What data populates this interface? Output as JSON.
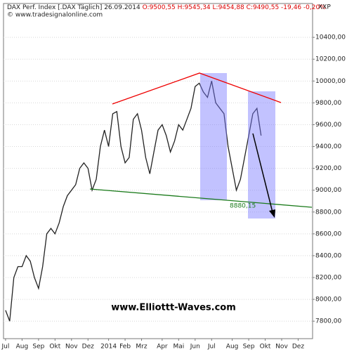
{
  "chart_data": {
    "type": "line",
    "title": "DAX Perf. Index [.DAX Täglich] 26.09.2014",
    "subtitle": "O:9500,55 H:9545,34 L:9454,88 C:9490,55 -19,46 -0,20%",
    "source": "© www.tradesignalonline.com",
    "symbol": "XXP",
    "annotations": [
      "8880,15",
      "www.Elliottt-Waves.com"
    ],
    "categories": [
      "Jul",
      null,
      null,
      null,
      "Aug",
      null,
      null,
      null,
      "Sep",
      null,
      null,
      null,
      "Okt",
      null,
      null,
      null,
      "Nov",
      null,
      null,
      null,
      "Dez",
      null,
      null,
      null,
      null,
      "2014",
      null,
      null,
      null,
      "Feb",
      null,
      null,
      null,
      "Mrz",
      null,
      null,
      null,
      null,
      "Apr",
      null,
      null,
      null,
      "Mai",
      null,
      null,
      null,
      "Jun",
      null,
      null,
      null,
      "Jul",
      null,
      null,
      null,
      null,
      "Aug",
      null,
      null,
      null,
      "Sep",
      null,
      null,
      null,
      "Okt",
      null,
      null,
      null,
      "Nov",
      null,
      null,
      null,
      "Dez",
      null,
      null,
      null
    ],
    "series": [
      {
        "name": "DAX",
        "color": "#222222",
        "values": [
          7900,
          7800,
          8200,
          8300,
          8300,
          8400,
          8350,
          8200,
          8100,
          8300,
          8600,
          8650,
          8600,
          8700,
          8850,
          8950,
          9000,
          9050,
          9200,
          9250,
          9200,
          9000,
          9100,
          9400,
          9550,
          9400,
          9700,
          9720,
          9400,
          9250,
          9300,
          9650,
          9700,
          9550,
          9300,
          9150,
          9350,
          9550,
          9600,
          9500,
          9350,
          9450,
          9600,
          9550,
          9650,
          9750,
          9950,
          9980,
          9900,
          9850,
          10000,
          9800,
          9750,
          9700,
          9400,
          9200,
          9000,
          9100,
          9300,
          9500,
          9700,
          9750,
          9500,
          null,
          null,
          null,
          null,
          null,
          null,
          null,
          null,
          null,
          null,
          null,
          null
        ]
      }
    ],
    "ylim": [
      7640,
      10710
    ],
    "yticks": [
      {
        "value": 7800,
        "label": "7800,00"
      },
      {
        "value": 8000,
        "label": "8000,00"
      },
      {
        "value": 8200,
        "label": "8200,00"
      },
      {
        "value": 8400,
        "label": "8400,00"
      },
      {
        "value": 8600,
        "label": "8600,00"
      },
      {
        "value": 8800,
        "label": "8800,00"
      },
      {
        "value": 9000,
        "label": "9000,00"
      },
      {
        "value": 9200,
        "label": "9200,00"
      },
      {
        "value": 9400,
        "label": "9400,00"
      },
      {
        "value": 9600,
        "label": "9600,00"
      },
      {
        "value": 9800,
        "label": "9800,00"
      },
      {
        "value": 10000,
        "label": "10000,00"
      },
      {
        "value": 10200,
        "label": "10200,00"
      },
      {
        "value": 10400,
        "label": "10400,00"
      }
    ],
    "grid": true
  }
}
